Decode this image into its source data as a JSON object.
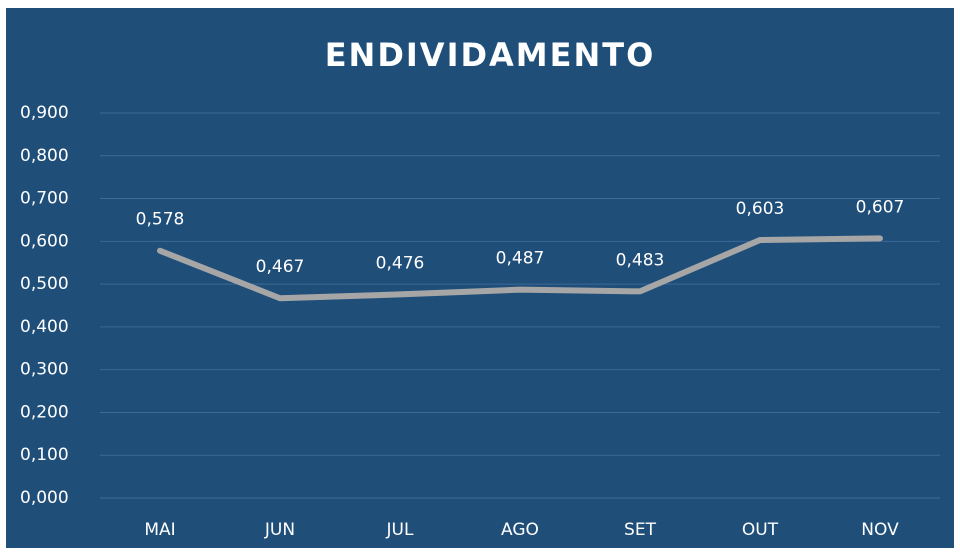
{
  "chart_data": {
    "type": "line",
    "title": "ENDIVIDAMENTO",
    "categories": [
      "MAI",
      "JUN",
      "JUL",
      "AGO",
      "SET",
      "OUT",
      "NOV"
    ],
    "series": [
      {
        "name": "ENDIVIDAMENTO",
        "color": "#a6a6a6",
        "values": [
          0.578,
          0.467,
          0.476,
          0.487,
          0.483,
          0.603,
          0.607
        ],
        "value_labels": [
          "0,578",
          "0,467",
          "0,476",
          "0,487",
          "0,483",
          "0,603",
          "0,607"
        ]
      }
    ],
    "ylim": [
      0,
      0.9
    ],
    "yticks": [
      {
        "value": 0,
        "label": "0,000"
      },
      {
        "value": 0.1,
        "label": "0,100"
      },
      {
        "value": 0.2,
        "label": "0,200"
      },
      {
        "value": 0.3,
        "label": "0,300"
      },
      {
        "value": 0.4,
        "label": "0,400"
      },
      {
        "value": 0.5,
        "label": "0,500"
      },
      {
        "value": 0.6,
        "label": "0,600"
      },
      {
        "value": 0.7,
        "label": "0,700"
      },
      {
        "value": 0.8,
        "label": "0,800"
      },
      {
        "value": 0.9,
        "label": "0,900"
      }
    ],
    "grid": true
  }
}
